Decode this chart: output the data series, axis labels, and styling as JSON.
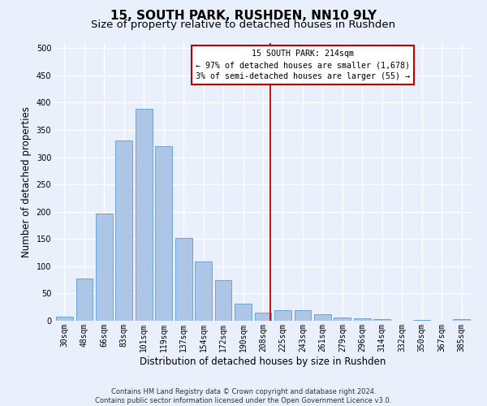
{
  "title": "15, SOUTH PARK, RUSHDEN, NN10 9LY",
  "subtitle": "Size of property relative to detached houses in Rushden",
  "xlabel": "Distribution of detached houses by size in Rushden",
  "ylabel": "Number of detached properties",
  "footer_line1": "Contains HM Land Registry data © Crown copyright and database right 2024.",
  "footer_line2": "Contains public sector information licensed under the Open Government Licence v3.0.",
  "categories": [
    "30sqm",
    "48sqm",
    "66sqm",
    "83sqm",
    "101sqm",
    "119sqm",
    "137sqm",
    "154sqm",
    "172sqm",
    "190sqm",
    "208sqm",
    "225sqm",
    "243sqm",
    "261sqm",
    "279sqm",
    "296sqm",
    "314sqm",
    "332sqm",
    "350sqm",
    "367sqm",
    "385sqm"
  ],
  "values": [
    8,
    78,
    197,
    330,
    388,
    320,
    152,
    108,
    74,
    31,
    15,
    19,
    20,
    12,
    6,
    5,
    3,
    0,
    2,
    0,
    3
  ],
  "bar_color": "#adc6e5",
  "bar_edge_color": "#5b9bd5",
  "vline_color": "#c00000",
  "annotation_text": "15 SOUTH PARK: 214sqm\n← 97% of detached houses are smaller (1,678)\n3% of semi-detached houses are larger (55) →",
  "annotation_box_color": "#c00000",
  "annotation_bg": "#ffffff",
  "ylim": [
    0,
    510
  ],
  "yticks": [
    0,
    50,
    100,
    150,
    200,
    250,
    300,
    350,
    400,
    450,
    500
  ],
  "bg_color": "#eaf0fb",
  "grid_color": "#ffffff",
  "title_fontsize": 11,
  "subtitle_fontsize": 9.5,
  "ylabel_fontsize": 8.5,
  "xlabel_fontsize": 8.5,
  "tick_fontsize": 7,
  "footer_fontsize": 6
}
